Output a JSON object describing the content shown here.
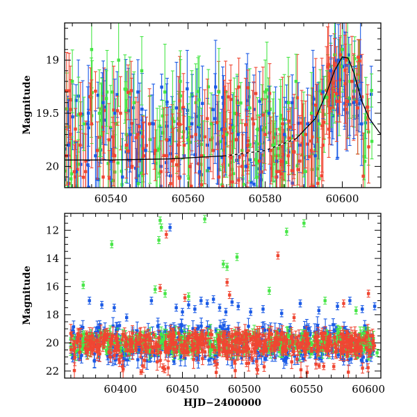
{
  "chart_data": [
    {
      "type": "scatter",
      "title": "",
      "xlabel": "",
      "ylabel": "Magnitude",
      "xlim": [
        60528,
        60610
      ],
      "ylim": [
        20.2,
        18.65
      ],
      "y_inverted": true,
      "xticks": [
        60540,
        60560,
        60580,
        60600
      ],
      "yticks": [
        19,
        19.5,
        20
      ],
      "xtick_labels": [
        "60540",
        "60560",
        "60580",
        "60600"
      ],
      "ytick_labels": [
        "19",
        "19.5",
        "20"
      ],
      "colors": {
        "blue": "#1a5ae6",
        "green": "#46e646",
        "red": "#f04632",
        "model": "#000000"
      },
      "errorbars": true,
      "model_curve": {
        "style": "solid with dashed middle segment",
        "x": [
          60528,
          60540,
          60555,
          60570,
          60580,
          60588,
          60593,
          60596,
          60598,
          60600,
          60601.5,
          60603,
          60605,
          60607,
          60610
        ],
        "y": [
          19.94,
          19.94,
          19.93,
          19.9,
          19.85,
          19.74,
          19.55,
          19.3,
          19.1,
          18.97,
          18.98,
          19.12,
          19.38,
          19.55,
          19.7
        ]
      },
      "series": [
        {
          "color": "blue",
          "x": [
            60529,
            60531,
            60534,
            60536,
            60538,
            60540,
            60541,
            60543,
            60545,
            60547,
            60549,
            60551,
            60553,
            60555,
            60557,
            60559,
            60561,
            60563,
            60565,
            60567,
            60569,
            60571,
            60573,
            60575,
            60577,
            60579,
            60581,
            60583,
            60585,
            60587,
            60589,
            60591,
            60593,
            60595,
            60597,
            60599,
            60601,
            60603,
            60605
          ],
          "y": [
            19.8,
            20.05,
            19.6,
            19.9,
            19.4,
            19.95,
            19.5,
            20.1,
            19.7,
            19.3,
            19.85,
            19.6,
            20.0,
            19.75,
            19.45,
            19.9,
            19.6,
            20.05,
            19.8,
            19.55,
            19.35,
            19.9,
            19.7,
            20.0,
            19.6,
            19.85,
            19.5,
            19.95,
            19.7,
            19.4,
            19.8,
            19.6,
            19.9,
            19.3,
            19.1,
            19.0,
            19.05,
            19.4,
            19.6
          ]
        },
        {
          "color": "green",
          "x": [
            60530,
            60533,
            60535,
            60537,
            60539,
            60542,
            60544,
            60546,
            60548,
            60550,
            60552,
            60554,
            60556,
            60558,
            60560,
            60562,
            60564,
            60566,
            60568,
            60570,
            60572,
            60574,
            60576,
            60578,
            60580,
            60582,
            60584,
            60586,
            60588,
            60590,
            60592,
            60594,
            60596,
            60598,
            60600,
            60602,
            60604
          ],
          "y": [
            19.2,
            19.6,
            18.9,
            19.5,
            19.3,
            19.0,
            19.7,
            19.4,
            19.1,
            19.6,
            19.85,
            19.3,
            19.55,
            19.2,
            19.75,
            19.4,
            19.9,
            19.6,
            19.3,
            19.7,
            19.5,
            19.85,
            19.45,
            19.65,
            19.3,
            19.8,
            19.55,
            19.4,
            19.2,
            19.7,
            19.5,
            19.6,
            19.35,
            18.95,
            18.9,
            19.2,
            19.45
          ]
        },
        {
          "color": "red",
          "x": [
            60528.5,
            60529.5,
            60530.5,
            60532,
            60533.5,
            60535,
            60536.5,
            60538,
            60539.5,
            60541,
            60542.5,
            60544,
            60545.5,
            60547,
            60548.5,
            60550,
            60551.5,
            60553,
            60554.5,
            60556,
            60557.5,
            60559,
            60560.5,
            60562,
            60563.5,
            60565,
            60566.5,
            60568,
            60569.5,
            60571,
            60572.5,
            60574,
            60575.5,
            60577,
            60578.5,
            60580,
            60581.5,
            60583,
            60584.5,
            60586,
            60587.5,
            60589,
            60590.5,
            60592,
            60593.5,
            60595,
            60596.5,
            60598,
            60599.5,
            60601,
            60602.5,
            60604
          ],
          "y": [
            19.9,
            19.7,
            20.05,
            19.8,
            19.95,
            19.6,
            19.85,
            20.1,
            19.75,
            19.9,
            19.5,
            19.8,
            20.0,
            19.7,
            19.9,
            19.6,
            19.85,
            20.05,
            19.75,
            19.95,
            19.6,
            19.8,
            20.0,
            19.7,
            19.9,
            19.55,
            19.85,
            20.1,
            19.65,
            19.9,
            19.75,
            20.0,
            19.8,
            19.6,
            19.95,
            19.7,
            19.85,
            20.05,
            19.6,
            19.9,
            19.75,
            19.95,
            19.7,
            19.85,
            19.5,
            19.8,
            19.65,
            19.05,
            18.95,
            19.0,
            19.2,
            19.45
          ]
        }
      ]
    },
    {
      "type": "scatter",
      "title": "",
      "xlabel": "HJD−2400000",
      "ylabel": "Magnitude",
      "xlim": [
        60355,
        60610
      ],
      "ylim": [
        22.5,
        10.8
      ],
      "y_inverted": true,
      "xticks": [
        60400,
        60450,
        60500,
        60550,
        60600
      ],
      "yticks": [
        12,
        14,
        16,
        18,
        20,
        22
      ],
      "xtick_labels": [
        "60400",
        "60450",
        "60500",
        "60550",
        "60600"
      ],
      "ytick_labels": [
        "12",
        "14",
        "16",
        "18",
        "20",
        "22"
      ],
      "colors": {
        "blue": "#1a5ae6",
        "green": "#46e646",
        "red": "#f04632"
      },
      "errorbars": true,
      "baseline_mag": 20.0,
      "series": [
        {
          "color": "blue",
          "x": [
            60375,
            60385,
            60395,
            60405,
            60415,
            60425,
            60440,
            60445,
            60450,
            60455,
            60460,
            60465,
            60470,
            60475,
            60480,
            60485,
            60490,
            60495,
            60505,
            60515,
            60530,
            60545,
            60560,
            60575,
            60585,
            60595,
            60605
          ],
          "y": [
            17.0,
            17.3,
            17.5,
            18.2,
            20.5,
            17.0,
            11.8,
            17.5,
            17.8,
            17.3,
            17.6,
            17.0,
            17.2,
            16.9,
            17.5,
            17.8,
            17.1,
            17.4,
            17.8,
            17.6,
            17.9,
            17.2,
            17.7,
            17.4,
            17.0,
            17.6,
            17.4
          ]
        },
        {
          "color": "green",
          "x": [
            60370,
            60393,
            60428,
            60431,
            60432,
            60433,
            60436,
            60455,
            60468,
            60483,
            60486,
            60494,
            60520,
            60534,
            60548,
            60565,
            60590,
            60607
          ],
          "y": [
            15.9,
            13.0,
            16.2,
            12.7,
            11.3,
            11.8,
            16.5,
            16.7,
            11.2,
            14.4,
            14.6,
            13.9,
            16.3,
            12.1,
            11.5,
            17.0,
            17.7,
            20.7
          ]
        },
        {
          "color": "red",
          "x": [
            60395,
            60432,
            60437,
            60452,
            60486,
            60488,
            60527,
            60540,
            60580,
            60600
          ],
          "y": [
            20.9,
            16.1,
            12.3,
            16.8,
            15.7,
            16.6,
            13.8,
            18.2,
            17.2,
            16.5
          ]
        }
      ]
    }
  ]
}
